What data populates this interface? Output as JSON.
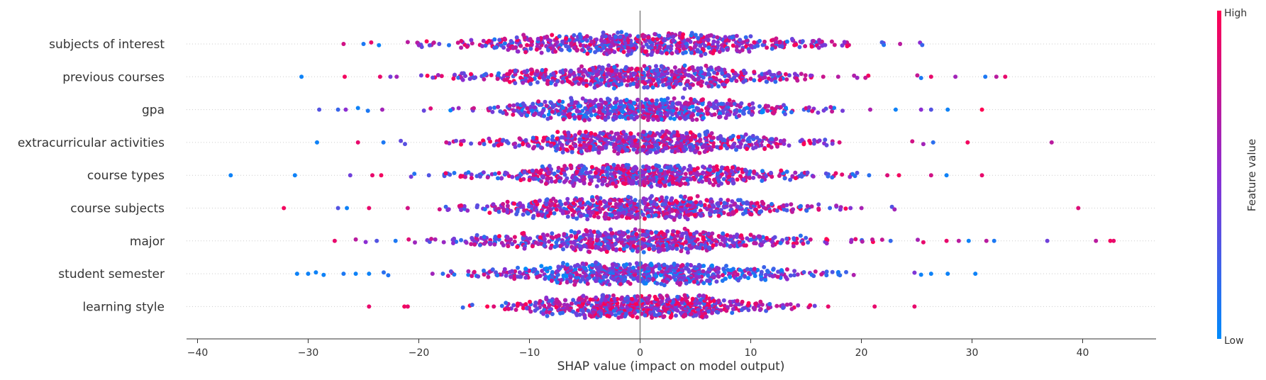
{
  "chart_data": {
    "type": "scatter",
    "subtype": "shap-beeswarm",
    "title": "",
    "xlabel": "SHAP value (impact on model output)",
    "xlim": [
      -41,
      47
    ],
    "xticks": [
      -40,
      -30,
      -20,
      -10,
      0,
      10,
      20,
      30,
      40
    ],
    "xtick_labels": [
      "−40",
      "−30",
      "−20",
      "−10",
      "0",
      "10",
      "20",
      "30",
      "40"
    ],
    "grid": false,
    "colorbar": {
      "label": "Feature value",
      "high_label": "High",
      "low_label": "Low",
      "low_color": "#008bfb",
      "high_color": "#ff0052"
    },
    "features": [
      {
        "name": "subjects of interest",
        "min": -27,
        "max": 25.5,
        "spread": 9.0,
        "bimodal": 5.0,
        "color_bias": 0.55,
        "outliers": [
          [
            -26.8,
            0.8
          ],
          [
            -25,
            0.1
          ],
          [
            -24.3,
            0.9
          ],
          [
            -23.6,
            0.05
          ],
          [
            -21,
            0.7
          ],
          [
            23.5,
            0.7
          ],
          [
            25.3,
            0.5
          ],
          [
            25.5,
            0.2
          ]
        ]
      },
      {
        "name": "previous courses",
        "min": -31,
        "max": 33,
        "spread": 7.5,
        "bimodal": 0,
        "color_bias": 0.55,
        "outliers": [
          [
            -30.6,
            0.05
          ],
          [
            -26.7,
            0.95
          ],
          [
            -23.5,
            0.9
          ],
          [
            -22,
            0.6
          ],
          [
            25.4,
            0.1
          ],
          [
            26.3,
            0.9
          ],
          [
            28.5,
            0.6
          ],
          [
            31.2,
            0.1
          ],
          [
            32.2,
            0.7
          ],
          [
            33,
            0.9
          ]
        ]
      },
      {
        "name": "gpa",
        "min": -29,
        "max": 31,
        "spread": 7.0,
        "bimodal": 0,
        "color_bias": 0.45,
        "outliers": [
          [
            -29,
            0.3
          ],
          [
            -27.3,
            0.2
          ],
          [
            -26.6,
            0.5
          ],
          [
            -25.5,
            0.05
          ],
          [
            -24.6,
            0.1
          ],
          [
            -23.3,
            0.6
          ],
          [
            23.1,
            0.05
          ],
          [
            25.4,
            0.5
          ],
          [
            26.3,
            0.3
          ],
          [
            27.8,
            0.05
          ],
          [
            30.9,
            1.0
          ]
        ]
      },
      {
        "name": "extracurricular activities",
        "min": -29,
        "max": 37,
        "spread": 7.0,
        "bimodal": 0,
        "color_bias": 0.6,
        "outliers": [
          [
            -29.2,
            0.05
          ],
          [
            -25.5,
            0.9
          ],
          [
            -23.2,
            0.1
          ],
          [
            24.6,
            0.8
          ],
          [
            25.6,
            0.6
          ],
          [
            29.6,
            0.95
          ],
          [
            37.2,
            0.7
          ]
        ]
      },
      {
        "name": "course types",
        "min": -37,
        "max": 31,
        "spread": 7.5,
        "bimodal": 0,
        "color_bias": 0.55,
        "outliers": [
          [
            -37,
            0.05
          ],
          [
            -31.2,
            0.05
          ],
          [
            -26.2,
            0.4
          ],
          [
            -24.2,
            0.9
          ],
          [
            -23.4,
            0.95
          ],
          [
            23.4,
            0.95
          ],
          [
            26.3,
            0.8
          ],
          [
            27.7,
            0.05
          ],
          [
            30.9,
            0.9
          ]
        ]
      },
      {
        "name": "course subjects",
        "min": -32,
        "max": 40,
        "spread": 7.5,
        "bimodal": 0,
        "color_bias": 0.55,
        "outliers": [
          [
            -32.2,
            0.95
          ],
          [
            -27.3,
            0.3
          ],
          [
            -26.5,
            0.05
          ],
          [
            -24.5,
            0.9
          ],
          [
            -21,
            0.8
          ],
          [
            23,
            0.6
          ],
          [
            39.6,
            0.85
          ]
        ]
      },
      {
        "name": "major",
        "min": -28,
        "max": 43,
        "spread": 8.0,
        "bimodal": 0,
        "color_bias": 0.55,
        "outliers": [
          [
            -27.6,
            0.9
          ],
          [
            -25.7,
            0.7
          ],
          [
            -24.8,
            0.5
          ],
          [
            -23.8,
            0.3
          ],
          [
            -22.1,
            0.1
          ],
          [
            25.6,
            0.9
          ],
          [
            27.7,
            0.9
          ],
          [
            28.8,
            0.7
          ],
          [
            29.7,
            0.05
          ],
          [
            31.3,
            0.7
          ],
          [
            32,
            0.1
          ],
          [
            36.8,
            0.4
          ],
          [
            41.2,
            0.7
          ],
          [
            42.5,
            0.95
          ],
          [
            42.8,
            0.9
          ]
        ]
      },
      {
        "name": "student semester",
        "min": -31,
        "max": 30,
        "spread": 7.5,
        "bimodal": 0,
        "color_bias": 0.4,
        "outliers": [
          [
            -31,
            0.05
          ],
          [
            -30,
            0.05
          ],
          [
            -29.3,
            0.05
          ],
          [
            -28.6,
            0.05
          ],
          [
            -26.8,
            0.1
          ],
          [
            -25.7,
            0.05
          ],
          [
            -24.5,
            0.05
          ],
          [
            25.4,
            0.05
          ],
          [
            26.3,
            0.05
          ],
          [
            27.8,
            0.05
          ],
          [
            30.3,
            0.05
          ]
        ]
      },
      {
        "name": "learning style",
        "min": -25,
        "max": 25,
        "spread": 5.5,
        "bimodal": 0,
        "color_bias": 0.6,
        "outliers": [
          [
            -24.5,
            0.9
          ],
          [
            -21.3,
            0.95
          ],
          [
            -21,
            0.9
          ],
          [
            17,
            0.9
          ],
          [
            21.2,
            0.9
          ],
          [
            24.8,
            0.9
          ]
        ]
      }
    ]
  }
}
